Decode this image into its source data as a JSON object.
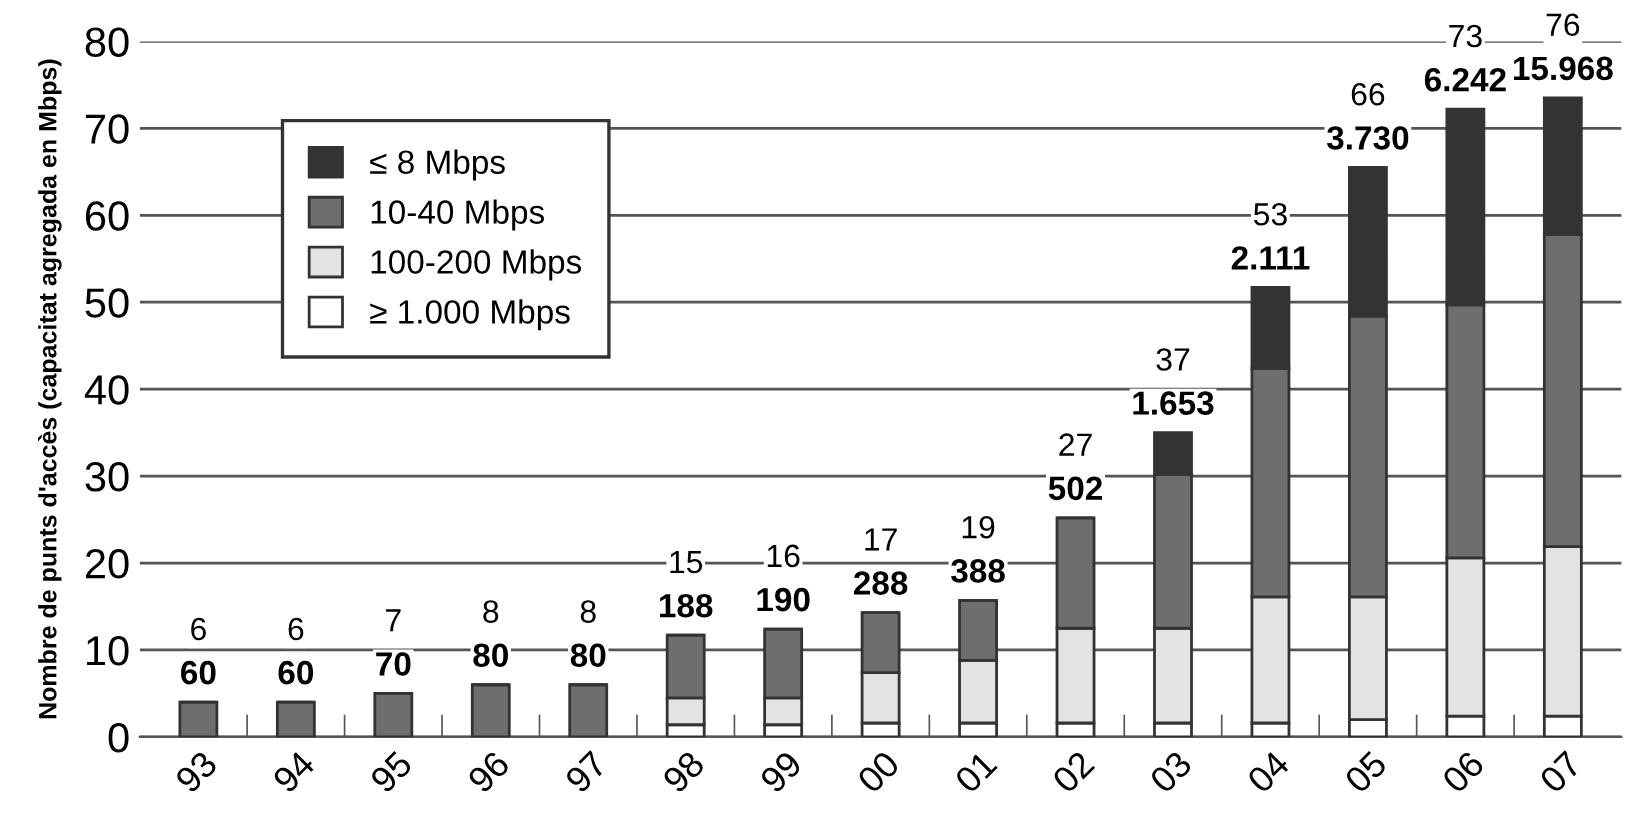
{
  "chart_data": {
    "type": "bar",
    "stacked": true,
    "ylabel": "Nombre de punts d'accès (capacitat agregada en Mbps)",
    "categories": [
      "93",
      "94",
      "95",
      "96",
      "97",
      "98",
      "99",
      "00",
      "01",
      "02",
      "03",
      "04",
      "05",
      "06",
      "07"
    ],
    "series": [
      {
        "name": "≥ 1.000 Mbps",
        "color": "#ffffff",
        "values": [
          0,
          0,
          0,
          0,
          0,
          1.4,
          1.4,
          1.6,
          1.6,
          1.6,
          1.6,
          1.6,
          2.0,
          2.4,
          2.4
        ]
      },
      {
        "name": "100-200 Mbps",
        "color": "#e3e3e3",
        "values": [
          0,
          0,
          0,
          0,
          0,
          3.1,
          3.1,
          5.8,
          7.2,
          10.9,
          10.9,
          14.5,
          14.1,
          18.2,
          19.5
        ]
      },
      {
        "name": "10-40 Mbps",
        "color": "#6e6e6e",
        "values": [
          4,
          4,
          5,
          6,
          6,
          7.2,
          7.9,
          6.9,
          6.9,
          12.7,
          17.7,
          26.3,
          32.3,
          29.1,
          35.9
        ]
      },
      {
        "name": "≤ 8 Mbps",
        "color": "#333333",
        "values": [
          0,
          0,
          0,
          0,
          0,
          0,
          0,
          0,
          0,
          0,
          4.8,
          9.3,
          17.1,
          22.5,
          15.7
        ]
      }
    ],
    "annotations": [
      {
        "text": "6",
        "x": "93",
        "y": 4
      },
      {
        "text": "60",
        "x": "93",
        "y": 4
      },
      {
        "text": "6",
        "x": "94",
        "y": 4
      },
      {
        "text": "60",
        "x": "94",
        "y": 4
      },
      {
        "text": "7",
        "x": "95",
        "y": 5
      },
      {
        "text": "70",
        "x": "95",
        "y": 5
      },
      {
        "text": "8",
        "x": "96",
        "y": 6
      },
      {
        "text": "80",
        "x": "96",
        "y": 6
      },
      {
        "text": "8",
        "x": "97",
        "y": 6
      },
      {
        "text": "80",
        "x": "97",
        "y": 6
      },
      {
        "text": "15",
        "x": "98",
        "y": 11.7
      },
      {
        "text": "188",
        "x": "98",
        "y": 11.7
      },
      {
        "text": "16",
        "x": "99",
        "y": 12.4
      },
      {
        "text": "190",
        "x": "99",
        "y": 12.4
      },
      {
        "text": "17",
        "x": "00",
        "y": 14.3
      },
      {
        "text": "288",
        "x": "00",
        "y": 14.3
      },
      {
        "text": "19",
        "x": "01",
        "y": 15.7
      },
      {
        "text": "388",
        "x": "01",
        "y": 15.7
      },
      {
        "text": "27",
        "x": "02",
        "y": 25.2
      },
      {
        "text": "502",
        "x": "02",
        "y": 25.2
      },
      {
        "text": "37",
        "x": "03",
        "y": 35.0
      },
      {
        "text": "1.653",
        "x": "03",
        "y": 35.0
      },
      {
        "text": "53",
        "x": "04",
        "y": 51.7
      },
      {
        "text": "2.111",
        "x": "04",
        "y": 51.7
      },
      {
        "text": "66",
        "x": "05",
        "y": 65.5
      },
      {
        "text": "3.730",
        "x": "05",
        "y": 65.5
      },
      {
        "text": "73",
        "x": "06",
        "y": 72.2
      },
      {
        "text": "6.242",
        "x": "06",
        "y": 72.2
      },
      {
        "text": "76",
        "x": "07",
        "y": 73.5
      },
      {
        "text": "15.968",
        "x": "07",
        "y": 73.5
      }
    ],
    "ylim": [
      0,
      80
    ],
    "yticks": [
      0,
      10,
      20,
      30,
      40,
      50,
      60,
      70,
      80
    ],
    "grid": "y",
    "legend": "top left"
  }
}
